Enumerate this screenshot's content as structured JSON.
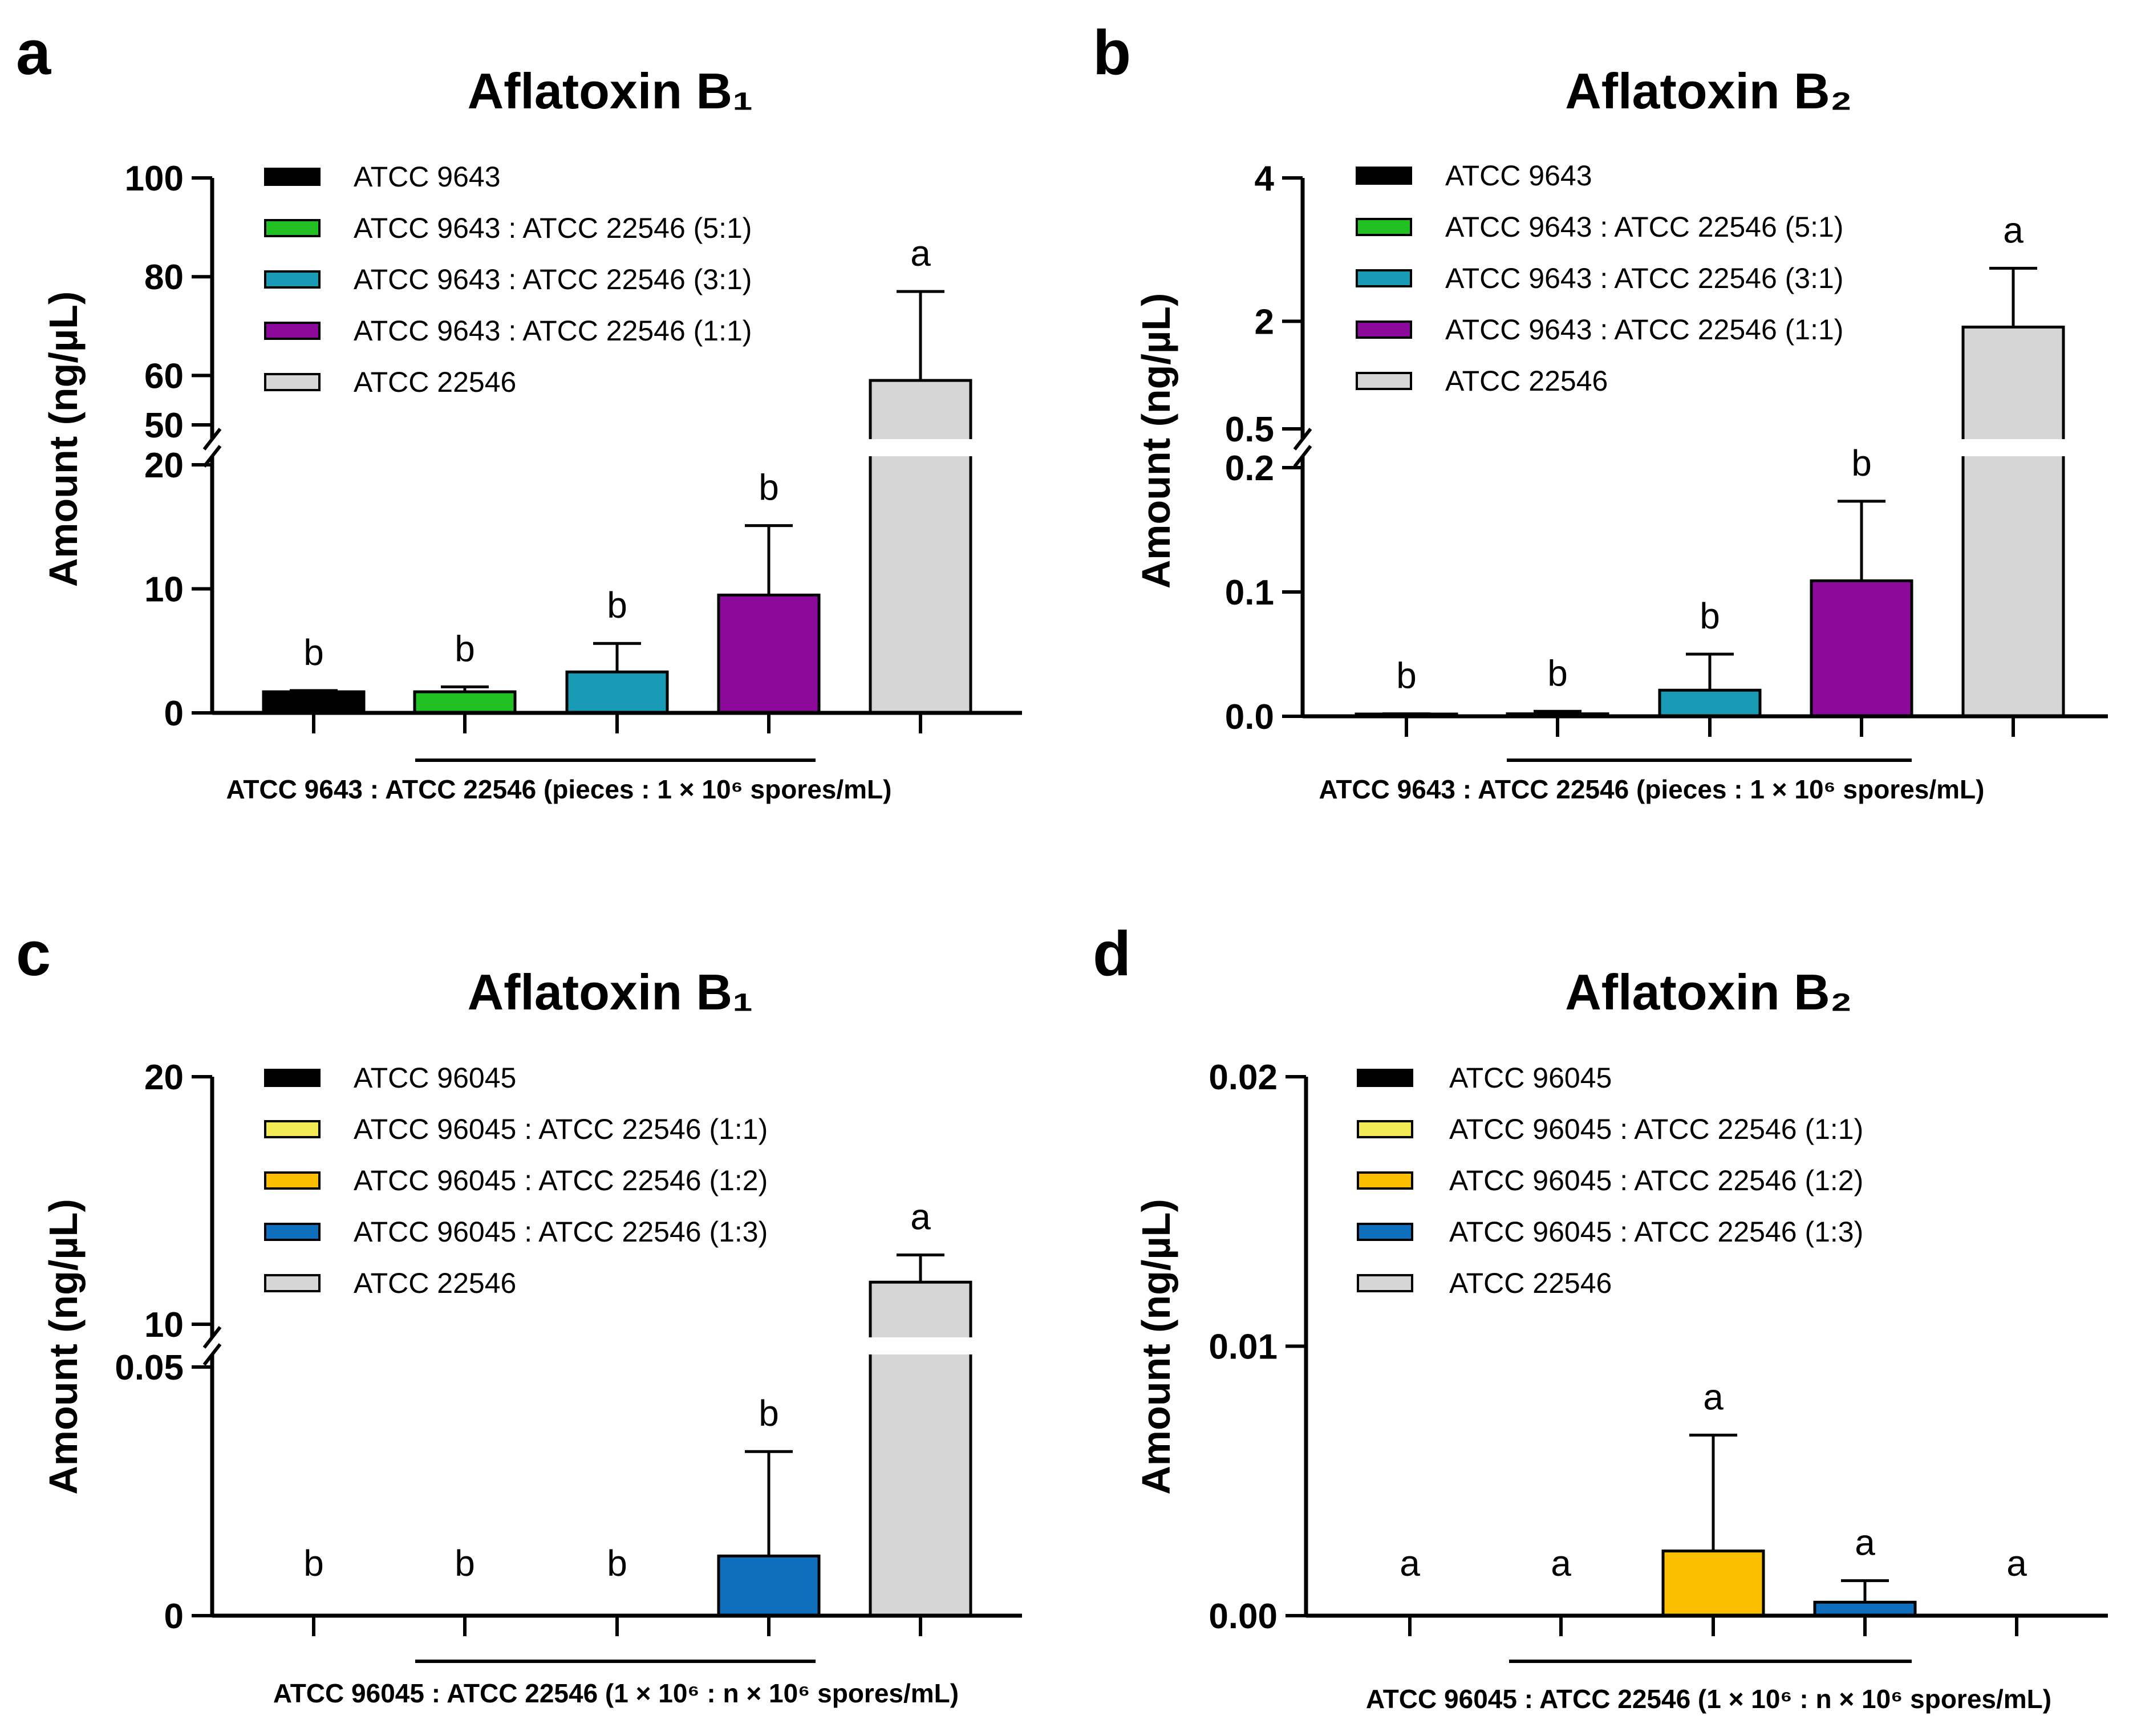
{
  "chart_data": [
    {
      "panel": "a",
      "type": "bar",
      "title": "Aflatoxin B₁",
      "ylabel": "Amount (ng/µL)",
      "xlabel": "ATCC 9643 : ATCC 22546 (pieces : 1 × 10⁶ spores/mL)",
      "categories": [
        "ATCC 9643",
        "ATCC 9643 : ATCC 22546 (5:1)",
        "ATCC 9643 : ATCC 22546 (3:1)",
        "ATCC 9643 : ATCC 22546 (1:1)",
        "ATCC 22546"
      ],
      "colors": [
        "#000000",
        "#22c022",
        "#1a9bb5",
        "#8b0a9c",
        "#d6d6d6"
      ],
      "values": [
        1.7,
        1.7,
        3.3,
        9.5,
        59
      ],
      "errors": [
        0.1,
        0.4,
        2.3,
        5.6,
        18
      ],
      "significance": [
        "b",
        "b",
        "b",
        "b",
        "a"
      ],
      "y_axis": {
        "lower": {
          "range": [
            0,
            20
          ],
          "ticks": [
            "0",
            "10",
            "20"
          ]
        },
        "upper": {
          "range": [
            50,
            100
          ],
          "ticks": [
            "50",
            "60",
            "80",
            "100"
          ]
        }
      }
    },
    {
      "panel": "b",
      "type": "bar",
      "title": "Aflatoxin B₂",
      "ylabel": "Amount (ng/µL)",
      "xlabel": "ATCC 9643 : ATCC 22546 (pieces : 1 × 10⁶ spores/mL)",
      "categories": [
        "ATCC 9643",
        "ATCC 9643 : ATCC 22546 (5:1)",
        "ATCC 9643 : ATCC 22546 (3:1)",
        "ATCC 9643 : ATCC 22546 (1:1)",
        "ATCC 22546"
      ],
      "colors": [
        "#000000",
        "#22c022",
        "#1a9bb5",
        "#8b0a9c",
        "#d6d6d6"
      ],
      "values": [
        0.001,
        0.002,
        0.021,
        0.109,
        1.92
      ],
      "errors": [
        0.001,
        0.002,
        0.029,
        0.064,
        0.82
      ],
      "significance": [
        "b",
        "b",
        "b",
        "b",
        "a"
      ],
      "y_axis": {
        "lower": {
          "range": [
            0,
            0.2
          ],
          "ticks": [
            "0.0",
            "0.1",
            "0.2"
          ]
        },
        "upper": {
          "range": [
            0.5,
            4
          ],
          "ticks": [
            "0.5",
            "2",
            "4"
          ]
        }
      }
    },
    {
      "panel": "c",
      "type": "bar",
      "title": "Aflatoxin B₁",
      "ylabel": "Amount (ng/µL)",
      "xlabel": "ATCC 96045 : ATCC 22546 (1 × 10⁶ : n × 10⁶ spores/mL)",
      "categories": [
        "ATCC 96045",
        "ATCC 96045 : ATCC 22546 (1:1)",
        "ATCC 96045 : ATCC 22546 (1:2)",
        "ATCC 96045 : ATCC 22546 (1:3)",
        "ATCC 22546"
      ],
      "colors": [
        "#000000",
        "#f2ea55",
        "#fbbf00",
        "#0f6fbd",
        "#d6d6d6"
      ],
      "values": [
        0,
        0,
        0,
        0.012,
        11.7
      ],
      "errors": [
        0,
        0,
        0,
        0.021,
        1.1
      ],
      "significance": [
        "b",
        "b",
        "b",
        "b",
        "a"
      ],
      "y_axis": {
        "lower": {
          "range": [
            0,
            0.05
          ],
          "ticks": [
            "0",
            "0.05"
          ]
        },
        "upper": {
          "range": [
            10,
            20
          ],
          "ticks": [
            "10",
            "20"
          ]
        }
      }
    },
    {
      "panel": "d",
      "type": "bar",
      "title": "Aflatoxin B₂",
      "ylabel": "Amount (ng/µL)",
      "xlabel": "ATCC 96045 : ATCC 22546 (1 × 10⁶ : n × 10⁶ spores/mL)",
      "categories": [
        "ATCC 96045",
        "ATCC 96045 : ATCC 22546 (1:1)",
        "ATCC 96045 : ATCC 22546 (1:2)",
        "ATCC 96045 : ATCC 22546 (1:3)",
        "ATCC 22546"
      ],
      "colors": [
        "#000000",
        "#f2ea55",
        "#fbbf00",
        "#0f6fbd",
        "#d6d6d6"
      ],
      "values": [
        0,
        0,
        0.0024,
        0.0005,
        0
      ],
      "errors": [
        0,
        0,
        0.0043,
        0.0008,
        0
      ],
      "significance": [
        "a",
        "a",
        "a",
        "a",
        "a"
      ],
      "y_axis": {
        "lower": {
          "range": [
            0,
            0.02
          ],
          "ticks": [
            "0.00",
            "0.01",
            "0.02"
          ]
        }
      }
    }
  ]
}
